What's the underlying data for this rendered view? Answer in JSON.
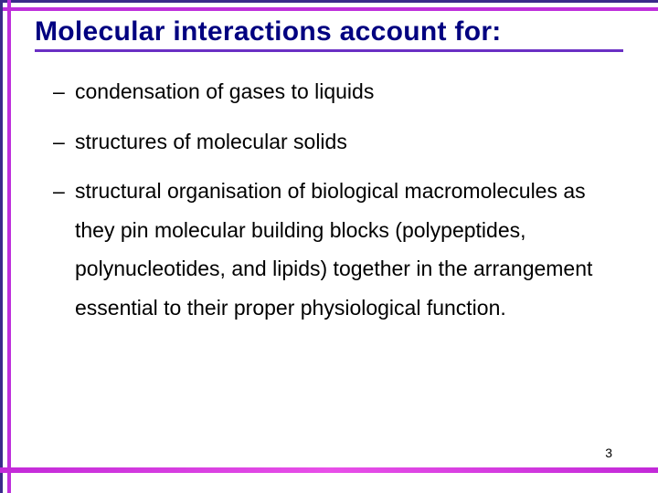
{
  "title": "Molecular interactions account for:",
  "bullets": [
    "condensation of gases to liquids",
    "structures of molecular solids",
    "structural organisation of biological macromolecules as they pin molecular building blocks (polypeptides, polynucleotides, and lipids) together in the arrangement essential to their proper physiological function."
  ],
  "page_number": "3",
  "colors": {
    "title_color": "#000080",
    "underline_color": "#6a2fc4",
    "border_dark": "#3a2a8a",
    "border_magenta": "#be2fdc",
    "bottom_bar": "#c229d8",
    "background": "#ffffff",
    "body_text": "#000000"
  },
  "typography": {
    "title_fontsize": 30,
    "body_fontsize": 23,
    "font_family": "Comic Sans MS"
  }
}
